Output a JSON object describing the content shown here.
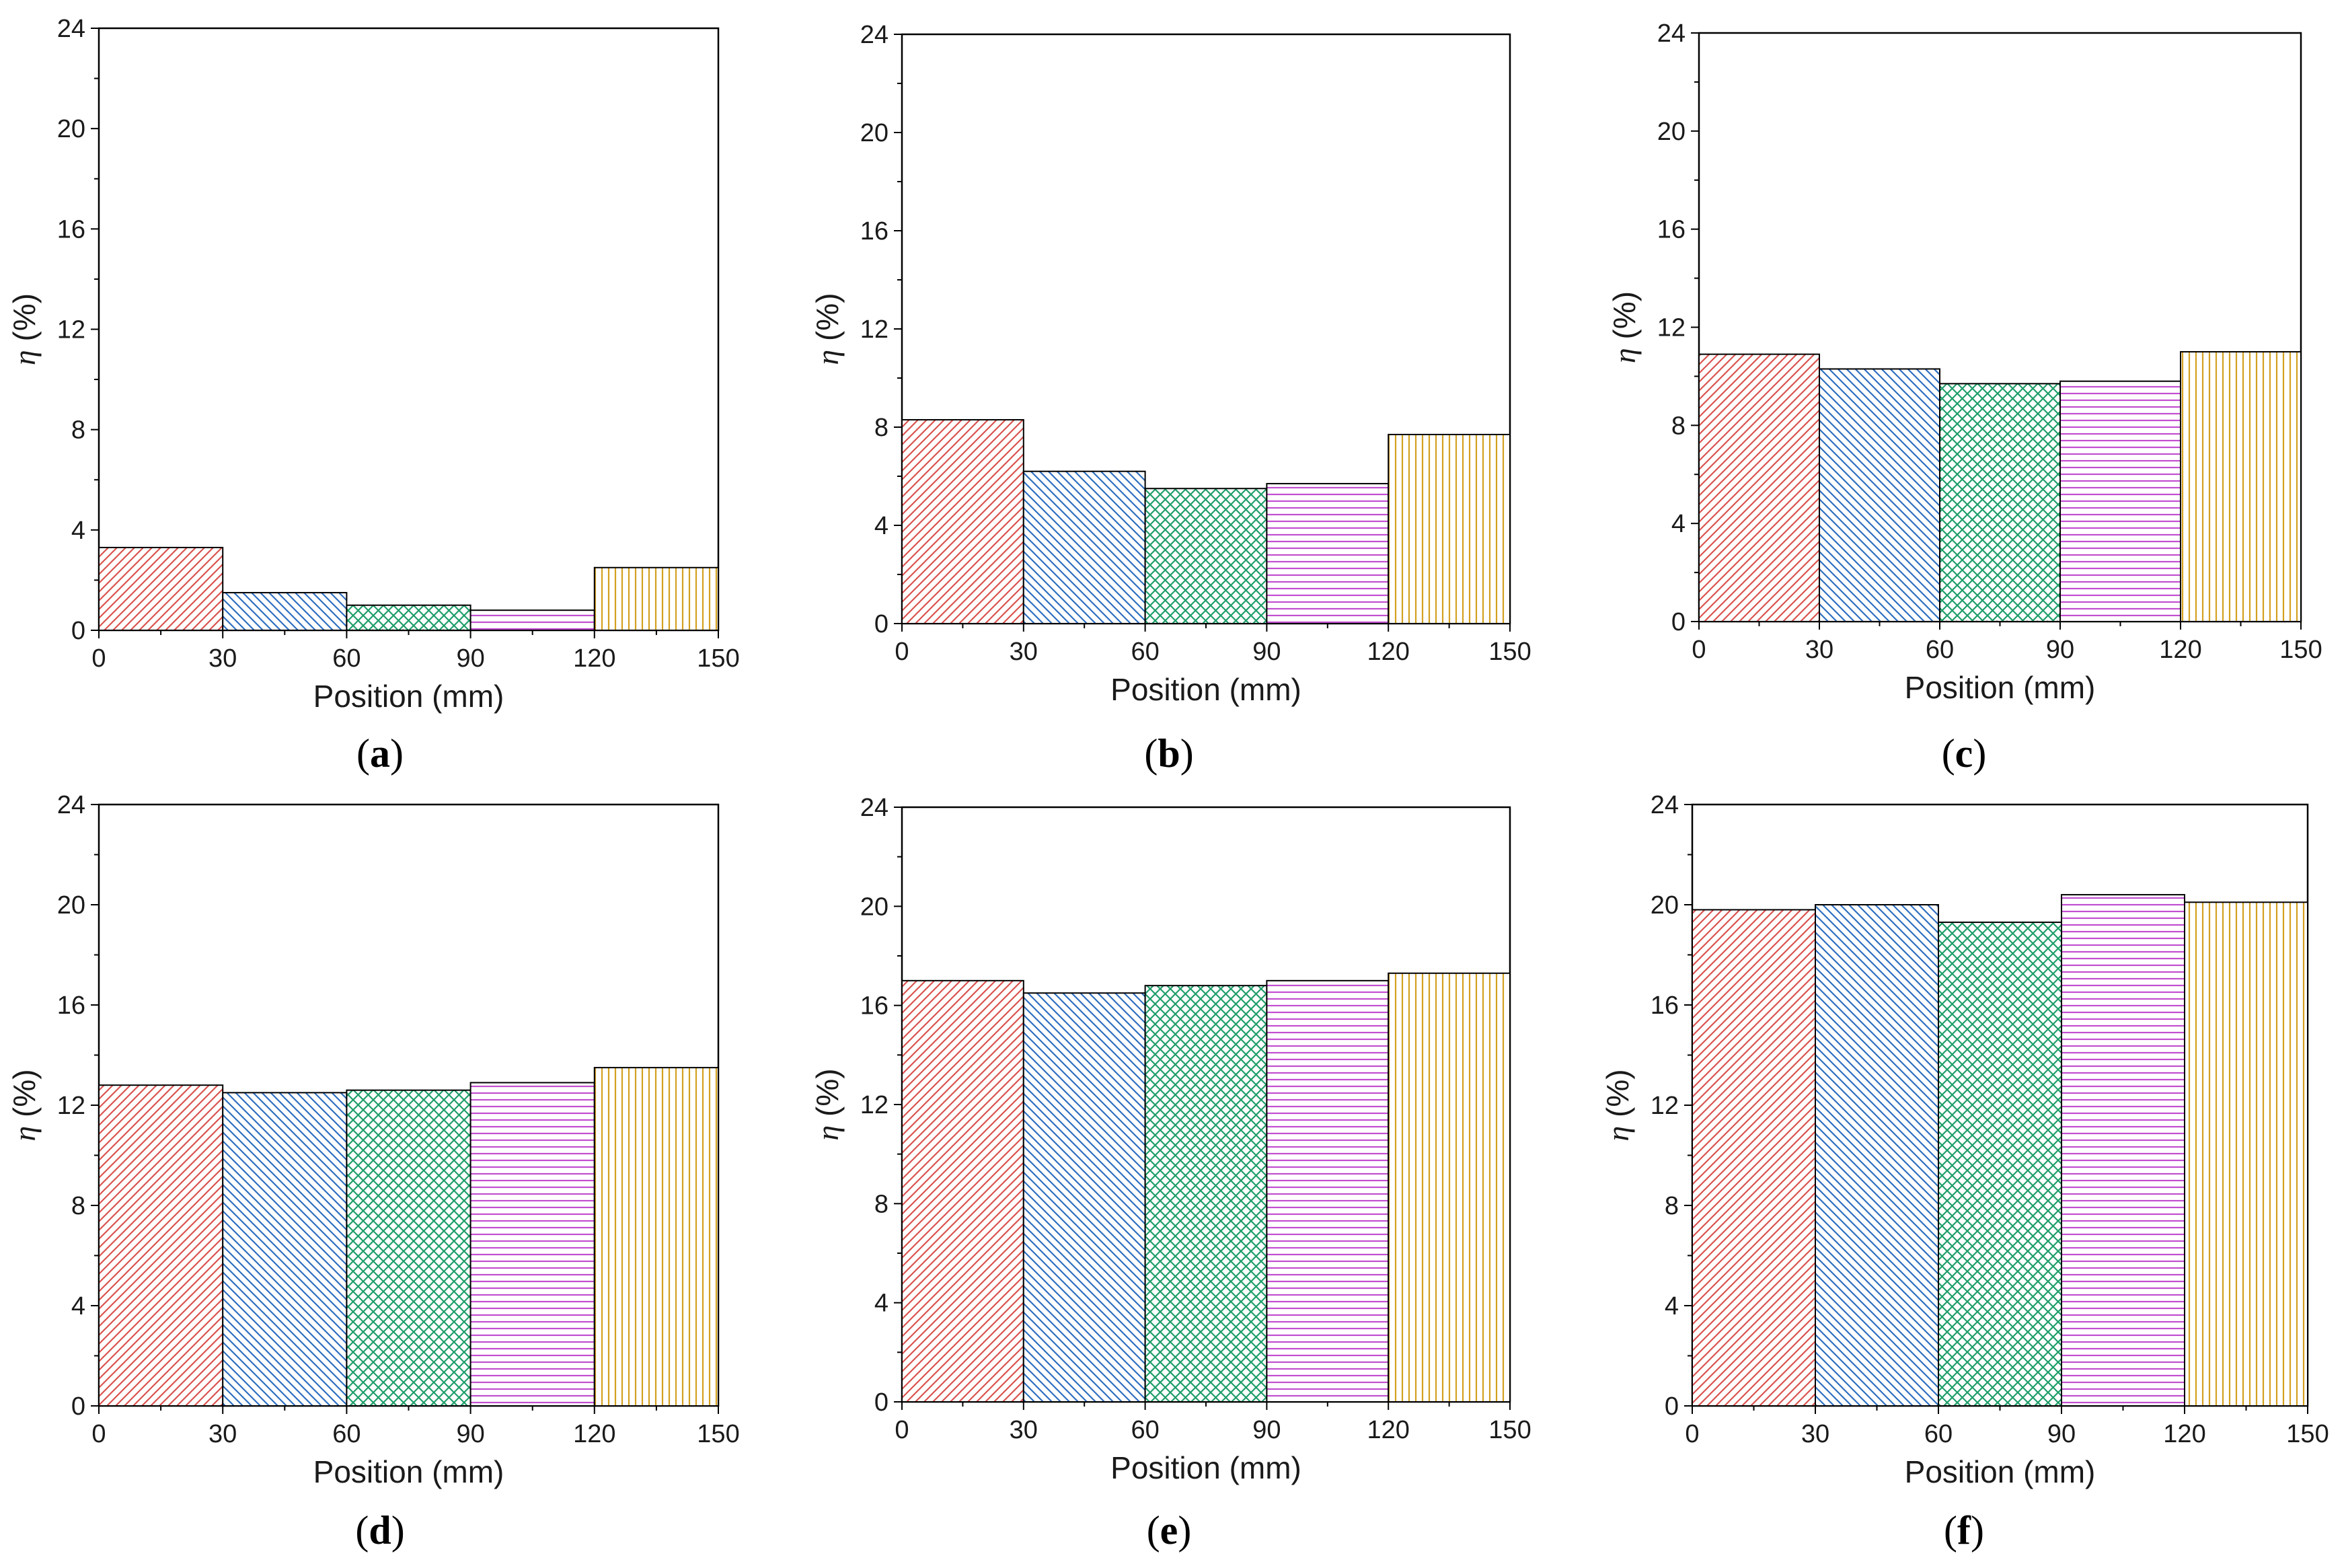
{
  "figure": {
    "bin_styles": [
      {
        "range": "0-30",
        "color": "#d9534f",
        "pattern": "diagonal-up"
      },
      {
        "range": "30-60",
        "color": "#2e6fc0",
        "pattern": "diagonal-down"
      },
      {
        "range": "60-90",
        "color": "#1f9e6a",
        "pattern": "crosshatch"
      },
      {
        "range": "90-120",
        "color": "#c24fd0",
        "pattern": "horizontal"
      },
      {
        "range": "120-150",
        "color": "#d4a020",
        "pattern": "vertical"
      }
    ]
  },
  "chart_data": [
    {
      "type": "bar",
      "panel": "a",
      "title": "",
      "xlabel": "Position (mm)",
      "ylabel_symbol": "η",
      "ylabel_unit": "(%)",
      "xlim": [
        0,
        150
      ],
      "ylim": [
        0,
        24
      ],
      "xticks": [
        "0",
        "30",
        "60",
        "90",
        "120",
        "150"
      ],
      "yticks": [
        "0",
        "4",
        "8",
        "12",
        "16",
        "20",
        "24"
      ],
      "bins": [
        [
          0,
          30
        ],
        [
          30,
          60
        ],
        [
          60,
          90
        ],
        [
          90,
          120
        ],
        [
          120,
          150
        ]
      ],
      "values": [
        3.3,
        1.5,
        1.0,
        0.8,
        2.5
      ]
    },
    {
      "type": "bar",
      "panel": "b",
      "title": "",
      "xlabel": "Position (mm)",
      "ylabel_symbol": "η",
      "ylabel_unit": "(%)",
      "xlim": [
        0,
        150
      ],
      "ylim": [
        0,
        24
      ],
      "xticks": [
        "0",
        "30",
        "60",
        "90",
        "120",
        "150"
      ],
      "yticks": [
        "0",
        "4",
        "8",
        "12",
        "16",
        "20",
        "24"
      ],
      "bins": [
        [
          0,
          30
        ],
        [
          30,
          60
        ],
        [
          60,
          90
        ],
        [
          90,
          120
        ],
        [
          120,
          150
        ]
      ],
      "values": [
        8.3,
        6.2,
        5.5,
        5.7,
        7.7
      ]
    },
    {
      "type": "bar",
      "panel": "c",
      "title": "",
      "xlabel": "Position (mm)",
      "ylabel_symbol": "η",
      "ylabel_unit": "(%)",
      "xlim": [
        0,
        150
      ],
      "ylim": [
        0,
        24
      ],
      "xticks": [
        "0",
        "30",
        "60",
        "90",
        "120",
        "150"
      ],
      "yticks": [
        "0",
        "4",
        "8",
        "12",
        "16",
        "20",
        "24"
      ],
      "bins": [
        [
          0,
          30
        ],
        [
          30,
          60
        ],
        [
          60,
          90
        ],
        [
          90,
          120
        ],
        [
          120,
          150
        ]
      ],
      "values": [
        10.9,
        10.3,
        9.7,
        9.8,
        11.0
      ]
    },
    {
      "type": "bar",
      "panel": "d",
      "title": "",
      "xlabel": "Position (mm)",
      "ylabel_symbol": "η",
      "ylabel_unit": "(%)",
      "xlim": [
        0,
        150
      ],
      "ylim": [
        0,
        24
      ],
      "xticks": [
        "0",
        "30",
        "60",
        "90",
        "120",
        "150"
      ],
      "yticks": [
        "0",
        "4",
        "8",
        "12",
        "16",
        "20",
        "24"
      ],
      "bins": [
        [
          0,
          30
        ],
        [
          30,
          60
        ],
        [
          60,
          90
        ],
        [
          90,
          120
        ],
        [
          120,
          150
        ]
      ],
      "values": [
        12.8,
        12.5,
        12.6,
        12.9,
        13.5
      ]
    },
    {
      "type": "bar",
      "panel": "e",
      "title": "",
      "xlabel": "Position (mm)",
      "ylabel_symbol": "η",
      "ylabel_unit": "(%)",
      "xlim": [
        0,
        150
      ],
      "ylim": [
        0,
        24
      ],
      "xticks": [
        "0",
        "30",
        "60",
        "90",
        "120",
        "150"
      ],
      "yticks": [
        "0",
        "4",
        "8",
        "12",
        "16",
        "20",
        "24"
      ],
      "bins": [
        [
          0,
          30
        ],
        [
          30,
          60
        ],
        [
          60,
          90
        ],
        [
          90,
          120
        ],
        [
          120,
          150
        ]
      ],
      "values": [
        17.0,
        16.5,
        16.8,
        17.0,
        17.3
      ]
    },
    {
      "type": "bar",
      "panel": "f",
      "title": "",
      "xlabel": "Position (mm)",
      "ylabel_symbol": "η",
      "ylabel_unit": "(%)",
      "xlim": [
        0,
        150
      ],
      "ylim": [
        0,
        24
      ],
      "xticks": [
        "0",
        "30",
        "60",
        "90",
        "120",
        "150"
      ],
      "yticks": [
        "0",
        "4",
        "8",
        "12",
        "16",
        "20",
        "24"
      ],
      "bins": [
        [
          0,
          30
        ],
        [
          30,
          60
        ],
        [
          60,
          90
        ],
        [
          90,
          120
        ],
        [
          120,
          150
        ]
      ],
      "values": [
        19.8,
        20.0,
        19.3,
        20.4,
        20.1
      ]
    }
  ]
}
